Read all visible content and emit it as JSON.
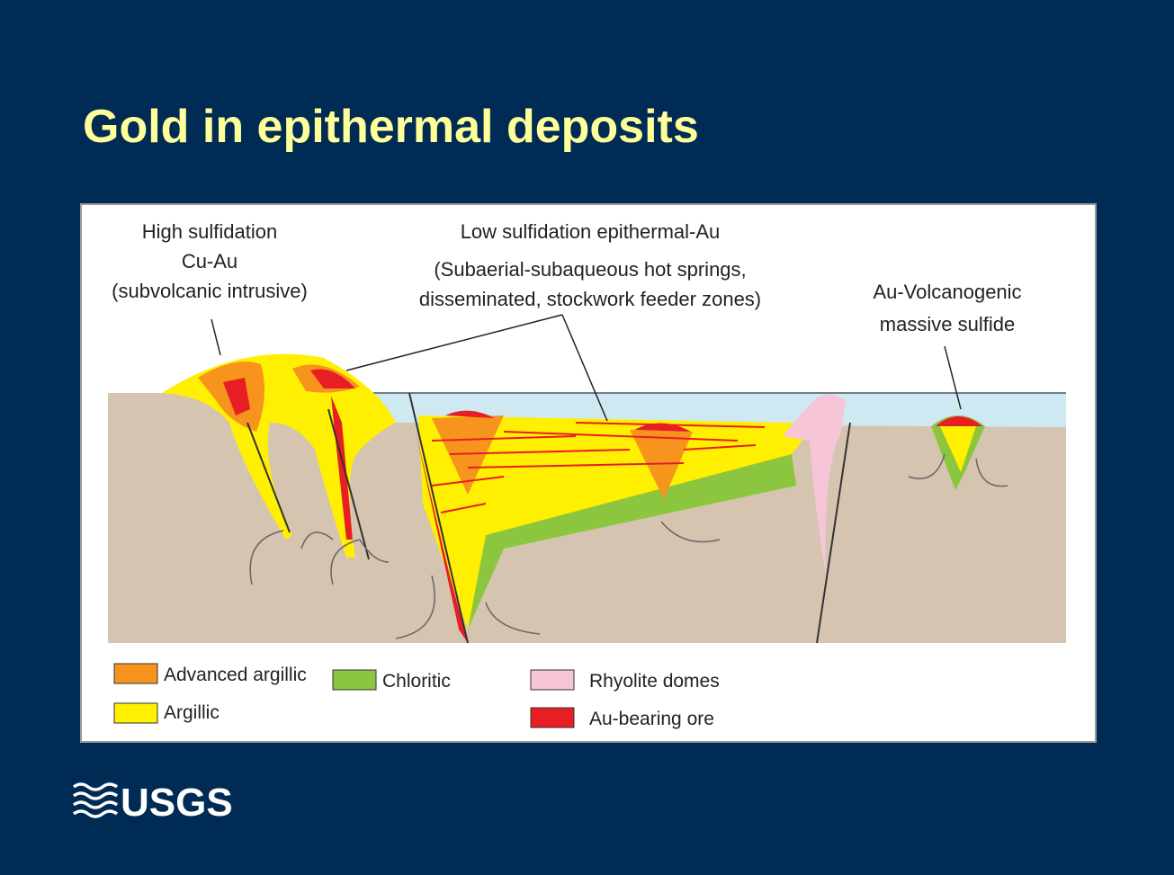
{
  "title": "Gold in epithermal deposits",
  "diagram": {
    "labels": [
      {
        "lines": [
          "High sulfidation",
          "Cu-Au",
          "(subvolcanic intrusive)"
        ]
      },
      {
        "lines": [
          "Low sulfidation epithermal-Au",
          "(Subaerial-subaqueous hot springs,",
          "disseminated, stockwork feeder zones)"
        ]
      },
      {
        "lines": [
          "Au-Volcanogenic",
          "massive sulfide"
        ]
      }
    ],
    "legend": [
      "Advanced argillic",
      "Argillic",
      "Chloritic",
      "Rhyolite domes",
      "Au-bearing ore"
    ]
  },
  "logo": "USGS"
}
